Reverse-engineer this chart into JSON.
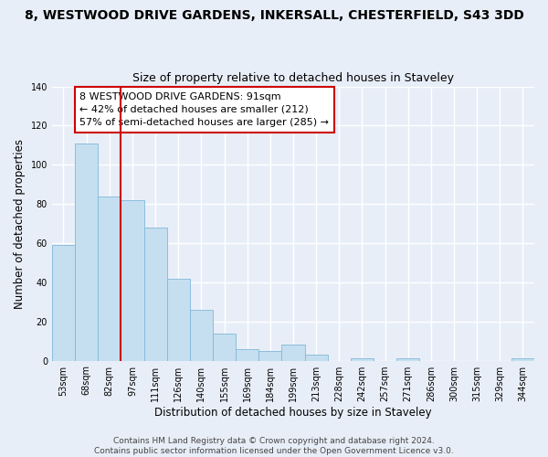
{
  "title": "8, WESTWOOD DRIVE GARDENS, INKERSALL, CHESTERFIELD, S43 3DD",
  "subtitle": "Size of property relative to detached houses in Staveley",
  "xlabel": "Distribution of detached houses by size in Staveley",
  "ylabel": "Number of detached properties",
  "bar_color": "#c5dff0",
  "bar_edge_color": "#7fb8d8",
  "categories": [
    "53sqm",
    "68sqm",
    "82sqm",
    "97sqm",
    "111sqm",
    "126sqm",
    "140sqm",
    "155sqm",
    "169sqm",
    "184sqm",
    "199sqm",
    "213sqm",
    "228sqm",
    "242sqm",
    "257sqm",
    "271sqm",
    "286sqm",
    "300sqm",
    "315sqm",
    "329sqm",
    "344sqm"
  ],
  "values": [
    59,
    111,
    84,
    82,
    68,
    42,
    26,
    14,
    6,
    5,
    8,
    3,
    0,
    1,
    0,
    1,
    0,
    0,
    0,
    0,
    1
  ],
  "vline_x": 2.5,
  "vline_color": "#cc0000",
  "annotation_text": "8 WESTWOOD DRIVE GARDENS: 91sqm\n← 42% of detached houses are smaller (212)\n57% of semi-detached houses are larger (285) →",
  "annotation_box_color": "#ffffff",
  "annotation_box_edge": "#cc0000",
  "ylim": [
    0,
    140
  ],
  "yticks": [
    0,
    20,
    40,
    60,
    80,
    100,
    120,
    140
  ],
  "footer1": "Contains HM Land Registry data © Crown copyright and database right 2024.",
  "footer2": "Contains public sector information licensed under the Open Government Licence v3.0.",
  "background_color": "#e8eef8",
  "grid_color": "#ffffff",
  "title_fontsize": 10,
  "subtitle_fontsize": 9,
  "axis_label_fontsize": 8.5,
  "tick_fontsize": 7,
  "annotation_fontsize": 8,
  "footer_fontsize": 6.5
}
